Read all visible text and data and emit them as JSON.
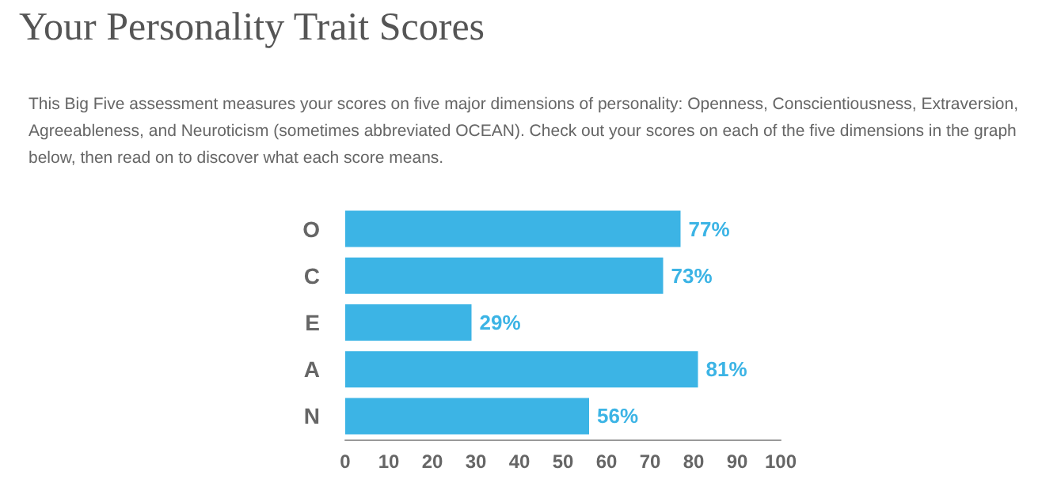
{
  "chart_data": {
    "type": "bar",
    "orientation": "horizontal",
    "title": "Your Personality Trait Scores",
    "subtitle": "This Big Five assessment measures your scores on five major dimensions of personality: Openness, Conscientiousness, Extraversion, Agreeableness, and Neuroticism (sometimes abbreviated OCEAN). Check out your scores on each of the five dimensions in the graph below, then read on to discover what each score means.",
    "categories": [
      "O",
      "C",
      "E",
      "A",
      "N"
    ],
    "values": [
      77,
      73,
      29,
      81,
      56
    ],
    "value_labels": [
      "77%",
      "73%",
      "29%",
      "81%",
      "56%"
    ],
    "color": "#3cb4e5",
    "xlim": [
      0,
      100
    ],
    "xticks": [
      0,
      10,
      20,
      30,
      40,
      50,
      60,
      70,
      80,
      90,
      100
    ],
    "grid": false
  }
}
